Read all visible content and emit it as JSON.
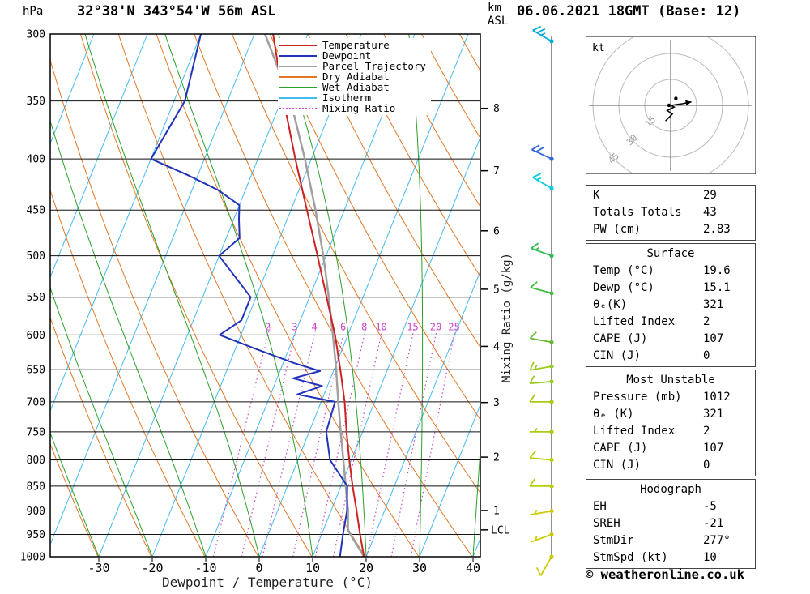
{
  "header": {
    "left_axis_unit": "hPa",
    "title": "32°38'N 343°54'W 56m ASL",
    "datetime": "06.06.2021 18GMT (Base: 12)",
    "right_axis_unit_line1": "km",
    "right_axis_unit_line2": "ASL"
  },
  "axes": {
    "pressure_ticks": [
      300,
      350,
      400,
      450,
      500,
      550,
      600,
      650,
      700,
      750,
      800,
      850,
      900,
      950,
      1000
    ],
    "temp_ticks": [
      -30,
      -20,
      -10,
      0,
      10,
      20,
      30,
      40
    ],
    "x_label": "Dewpoint / Temperature (°C)",
    "km_ticks": [
      {
        "km": 1,
        "p": 899
      },
      {
        "km": 2,
        "p": 795
      },
      {
        "km": 3,
        "p": 701
      },
      {
        "km": 4,
        "p": 616
      },
      {
        "km": 5,
        "p": 540
      },
      {
        "km": 6,
        "p": 472
      },
      {
        "km": 7,
        "p": 411
      },
      {
        "km": 8,
        "p": 356
      }
    ],
    "lcl": {
      "label": "LCL",
      "p": 940
    },
    "mixing_ratio_axis_label": "Mixing Ratio (g/kg)"
  },
  "legend": {
    "items": [
      {
        "label": "Temperature",
        "color": "#cc2222",
        "dash": false
      },
      {
        "label": "Dewpoint",
        "color": "#2233bb",
        "dash": false
      },
      {
        "label": "Parcel Trajectory",
        "color": "#a0a0a0",
        "dash": false
      },
      {
        "label": "Dry Adiabat",
        "color": "#e07828",
        "dash": false
      },
      {
        "label": "Wet Adiabat",
        "color": "#2aa02a",
        "dash": false
      },
      {
        "label": "Isotherm",
        "color": "#44bbee",
        "dash": false
      },
      {
        "label": "Mixing Ratio",
        "color": "#cc44cc",
        "dash": true
      }
    ]
  },
  "chart_data": {
    "type": "line",
    "variant": "skew-t-log-p",
    "title": "32°38'N 343°54'W 56m ASL",
    "xlabel": "Dewpoint / Temperature (°C)",
    "ylabel": "hPa",
    "temp_range_c": [
      -40,
      40
    ],
    "pressure_range_hpa": [
      300,
      1000
    ],
    "mixing_ratio_lines_gkg": [
      2,
      3,
      4,
      6,
      8,
      10,
      15,
      20,
      25
    ],
    "isotherm_step_c": 10,
    "dry_adiabat_step_k": 10,
    "wet_adiabat_step_c": 10,
    "series": [
      {
        "name": "Temperature",
        "color": "#cc2222",
        "width": 2,
        "points_p_t": [
          [
            1000,
            19.6
          ],
          [
            950,
            17.2
          ],
          [
            900,
            14.8
          ],
          [
            850,
            12.2
          ],
          [
            800,
            9.6
          ],
          [
            750,
            7.0
          ],
          [
            700,
            4.4
          ],
          [
            650,
            1.2
          ],
          [
            600,
            -2.4
          ],
          [
            550,
            -6.8
          ],
          [
            500,
            -11.6
          ],
          [
            450,
            -17.0
          ],
          [
            400,
            -23.0
          ],
          [
            350,
            -29.5
          ],
          [
            300,
            -36.5
          ]
        ]
      },
      {
        "name": "Dewpoint",
        "color": "#2233bb",
        "width": 2,
        "points_p_t": [
          [
            1000,
            15.1
          ],
          [
            950,
            14.0
          ],
          [
            900,
            13.0
          ],
          [
            850,
            11.2
          ],
          [
            800,
            6.0
          ],
          [
            750,
            3.2
          ],
          [
            700,
            2.6
          ],
          [
            688,
            -5.0
          ],
          [
            675,
            -1.0
          ],
          [
            663,
            -7.0
          ],
          [
            652,
            -2.5
          ],
          [
            640,
            -8.0
          ],
          [
            620,
            -16.0
          ],
          [
            600,
            -24.0
          ],
          [
            580,
            -21.0
          ],
          [
            550,
            -21.0
          ],
          [
            500,
            -30.0
          ],
          [
            480,
            -27.5
          ],
          [
            460,
            -29.0
          ],
          [
            445,
            -30.0
          ],
          [
            430,
            -35.0
          ],
          [
            415,
            -42.0
          ],
          [
            400,
            -50.0
          ],
          [
            350,
            -48.0
          ],
          [
            300,
            -50.0
          ]
        ]
      },
      {
        "name": "Parcel Trajectory",
        "color": "#a0a0a0",
        "width": 2.5,
        "points_p_t": [
          [
            1000,
            19.6
          ],
          [
            950,
            15.4
          ],
          [
            940,
            14.6
          ],
          [
            900,
            13.2
          ],
          [
            850,
            10.9
          ],
          [
            800,
            8.5
          ],
          [
            750,
            5.9
          ],
          [
            700,
            3.2
          ],
          [
            650,
            0.4
          ],
          [
            600,
            -2.8
          ],
          [
            550,
            -6.4
          ],
          [
            500,
            -10.5
          ],
          [
            450,
            -15.4
          ],
          [
            400,
            -21.2
          ],
          [
            350,
            -28.2
          ],
          [
            300,
            -38.0
          ]
        ]
      }
    ]
  },
  "wind_barbs": {
    "unit": "kt",
    "levels": [
      {
        "p": 305,
        "speed": 25,
        "dir": 300,
        "color": "#00aadd"
      },
      {
        "p": 400,
        "speed": 20,
        "dir": 295,
        "color": "#3366dd"
      },
      {
        "p": 428,
        "speed": 15,
        "dir": 300,
        "color": "#00ccdd"
      },
      {
        "p": 500,
        "speed": 15,
        "dir": 290,
        "color": "#33bb55"
      },
      {
        "p": 545,
        "speed": 10,
        "dir": 285,
        "color": "#44bb44"
      },
      {
        "p": 610,
        "speed": 10,
        "dir": 280,
        "color": "#66bb33"
      },
      {
        "p": 645,
        "speed": 15,
        "dir": 260,
        "color": "#99cc22"
      },
      {
        "p": 668,
        "speed": 10,
        "dir": 265,
        "color": "#99cc22"
      },
      {
        "p": 700,
        "speed": 10,
        "dir": 270,
        "color": "#aacc11"
      },
      {
        "p": 750,
        "speed": 5,
        "dir": 270,
        "color": "#aacc11"
      },
      {
        "p": 800,
        "speed": 10,
        "dir": 275,
        "color": "#bbcc00"
      },
      {
        "p": 850,
        "speed": 10,
        "dir": 270,
        "color": "#bbcc00"
      },
      {
        "p": 900,
        "speed": 5,
        "dir": 260,
        "color": "#cccc00"
      },
      {
        "p": 950,
        "speed": 5,
        "dir": 250,
        "color": "#cccc00"
      },
      {
        "p": 1000,
        "speed": 10,
        "dir": 210,
        "color": "#cccc00"
      }
    ]
  },
  "hodograph": {
    "unit_label": "kt",
    "ring_spacing_kt": 15,
    "ring_labels": [
      "15",
      "30",
      "45"
    ],
    "trace_points_uv_kt": [
      [
        -3,
        -9
      ],
      [
        1,
        -5
      ],
      [
        -2,
        -3
      ],
      [
        2,
        -1
      ],
      [
        0,
        0
      ],
      [
        7,
        1
      ]
    ],
    "arrow_uv_kt": [
      12,
      2
    ],
    "dots_uv_kt": [
      [
        3,
        4
      ],
      [
        -1,
        0
      ]
    ]
  },
  "tables": [
    {
      "name": "indices",
      "header": null,
      "rows": [
        [
          "K",
          "29"
        ],
        [
          "Totals Totals",
          "43"
        ],
        [
          "PW (cm)",
          "2.83"
        ]
      ]
    },
    {
      "name": "surface",
      "header": "Surface",
      "rows": [
        [
          "Temp (°C)",
          "19.6"
        ],
        [
          "Dewp (°C)",
          "15.1"
        ],
        [
          "θₑ(K)",
          "321"
        ],
        [
          "Lifted Index",
          "2"
        ],
        [
          "CAPE (J)",
          "107"
        ],
        [
          "CIN (J)",
          "0"
        ]
      ]
    },
    {
      "name": "most-unstable",
      "header": "Most Unstable",
      "rows": [
        [
          "Pressure (mb)",
          "1012"
        ],
        [
          "θₑ (K)",
          "321"
        ],
        [
          "Lifted Index",
          "2"
        ],
        [
          "CAPE (J)",
          "107"
        ],
        [
          "CIN (J)",
          "0"
        ]
      ]
    },
    {
      "name": "hodograph",
      "header": "Hodograph",
      "rows": [
        [
          "EH",
          "-5"
        ],
        [
          "SREH",
          "-21"
        ],
        [
          "StmDir",
          "277°"
        ],
        [
          "StmSpd (kt)",
          "10"
        ]
      ]
    }
  ],
  "footer": {
    "copyright": "© weatheronline.co.uk"
  }
}
